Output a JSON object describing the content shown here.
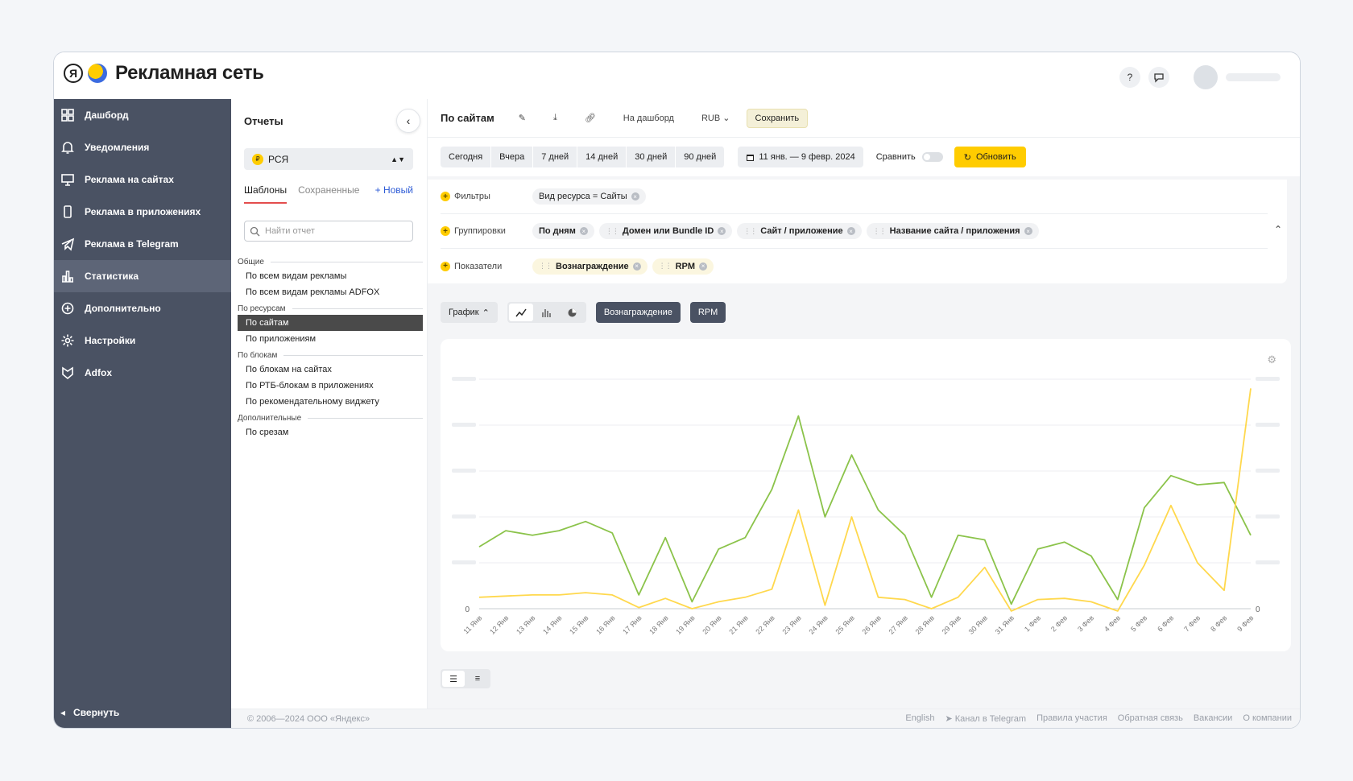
{
  "brand": {
    "logo_letter": "Я",
    "name": "Рекламная сеть"
  },
  "header": {
    "help_icon": "question-icon",
    "chat_icon": "chat-icon"
  },
  "sidebar": {
    "items": [
      {
        "label": "Дашборд",
        "icon": "dashboard-icon"
      },
      {
        "label": "Уведомления",
        "icon": "bell-icon"
      },
      {
        "label": "Реклама на сайтах",
        "icon": "monitor-icon"
      },
      {
        "label": "Реклама в приложениях",
        "icon": "phone-icon"
      },
      {
        "label": "Реклама в Telegram",
        "icon": "telegram-icon"
      },
      {
        "label": "Статистика",
        "icon": "bar-chart-icon",
        "active": true
      },
      {
        "label": "Дополнительно",
        "icon": "plus-circle-icon"
      },
      {
        "label": "Настройки",
        "icon": "gear-icon"
      },
      {
        "label": "Adfox",
        "icon": "adfox-icon"
      }
    ],
    "collapse_label": "Свернуть"
  },
  "reports": {
    "title": "Отчеты",
    "source": "РСЯ",
    "tabs": {
      "templates": "Шаблоны",
      "saved": "Сохраненные",
      "new": "+ Новый"
    },
    "search_placeholder": "Найти отчет",
    "groups": [
      {
        "name": "Общие",
        "items": [
          "По всем видам рекламы",
          "По всем видам рекламы ADFOX"
        ]
      },
      {
        "name": "По ресурсам",
        "items": [
          "По сайтам",
          "По приложениям"
        ]
      },
      {
        "name": "По блокам",
        "items": [
          "По блокам на сайтах",
          "По РТБ-блокам в приложениях",
          "По рекомендательному виджету"
        ]
      },
      {
        "name": "Дополнительные",
        "items": [
          "По срезам"
        ]
      }
    ],
    "active_item": "По сайтам"
  },
  "toolbar": {
    "title": "По сайтам",
    "to_dashboard": "На дашборд",
    "currency": "RUB",
    "save": "Сохранить"
  },
  "periods": {
    "buttons": [
      "Сегодня",
      "Вчера",
      "7 дней",
      "14 дней",
      "30 дней",
      "90 дней"
    ],
    "date_range": "11 янв. — 9 февр. 2024",
    "compare": "Сравнить",
    "refresh": "Обновить"
  },
  "filters": {
    "filters_label": "Фильтры",
    "filter_chip": "Вид ресурса = Сайты",
    "groupings_label": "Группировки",
    "groupings": [
      "По дням",
      "Домен или Bundle ID",
      "Сайт / приложение",
      "Название сайта / приложения"
    ],
    "metrics_label": "Показатели",
    "metrics": [
      "Вознаграждение",
      "RPM"
    ]
  },
  "chart_tools": {
    "graph": "График",
    "metric_buttons": [
      "Вознаграждение",
      "RPM"
    ]
  },
  "chart_data": {
    "type": "line",
    "categories": [
      "11 Янв",
      "12 Янв",
      "13 Янв",
      "14 Янв",
      "15 Янв",
      "16 Янв",
      "17 Янв",
      "18 Янв",
      "19 Янв",
      "20 Янв",
      "21 Янв",
      "22 Янв",
      "23 Янв",
      "24 Янв",
      "25 Янв",
      "26 Янв",
      "27 Янв",
      "28 Янв",
      "29 Янв",
      "30 Янв",
      "31 Янв",
      "1 Фев",
      "2 Фев",
      "3 Фев",
      "4 Фев",
      "5 Фев",
      "6 Фев",
      "7 Фев",
      "8 Фев",
      "9 Фев"
    ],
    "y_left_zero": "0",
    "y_right_zero": "0",
    "ylim": [
      0,
      100
    ],
    "series": [
      {
        "color": "#8bc34a",
        "values": [
          27,
          34,
          32,
          34,
          38,
          33,
          6,
          31,
          3,
          26,
          31,
          52,
          84,
          40,
          67,
          43,
          32,
          5,
          32,
          30,
          2,
          26,
          29,
          23,
          4,
          44,
          58,
          54,
          55,
          32
        ]
      },
      {
        "color": "#ffd84d",
        "values": [
          5,
          5.5,
          6,
          6,
          7,
          6,
          0.5,
          4.5,
          0,
          3,
          5,
          8.5,
          43,
          1.5,
          40,
          5,
          4,
          0,
          5,
          18,
          -1,
          4,
          4.5,
          3,
          -1,
          19,
          45,
          20,
          8,
          96
        ]
      }
    ],
    "grid": true
  },
  "footer": {
    "copyright": "© 2006—2024 ООО «Яндекс»",
    "links": [
      "English",
      "Канал в Telegram",
      "Правила участия",
      "Обратная связь",
      "Вакансии",
      "О компании"
    ]
  }
}
